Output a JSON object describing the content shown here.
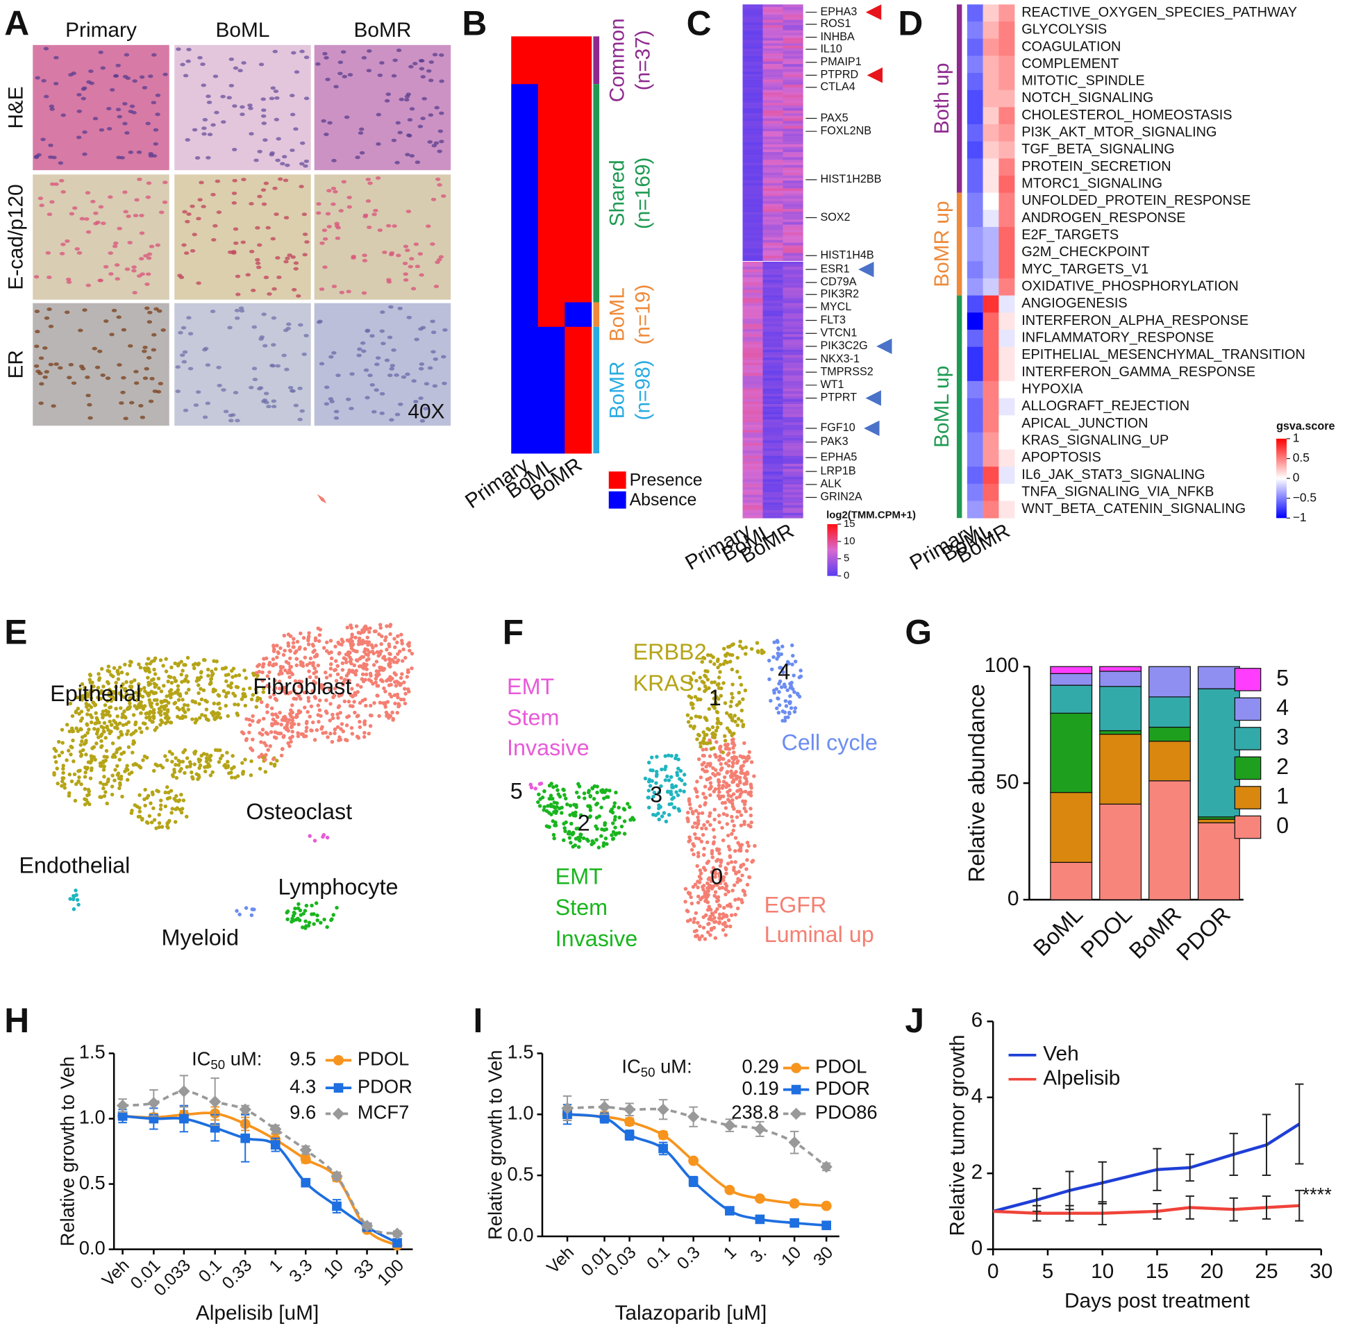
{
  "panel_labels": [
    "A",
    "B",
    "C",
    "D",
    "E",
    "F",
    "G",
    "H",
    "I",
    "J"
  ],
  "panel_a": {
    "columns": [
      "Primary",
      "BoML",
      "BoMR"
    ],
    "rows": [
      "H&E",
      "E-cad/p120",
      "ER"
    ],
    "magnification": "40X"
  },
  "panel_b": {
    "columns": [
      "Primary",
      "BoML",
      "BoMR"
    ],
    "groups": [
      {
        "name": "Common",
        "n": 37,
        "n_label": "(n=37)",
        "color": "#8e2a8e",
        "presence": [
          true,
          true,
          true
        ]
      },
      {
        "name": "Shared",
        "n": 169,
        "n_label": "(n=169)",
        "color": "#1e9a52",
        "presence": [
          false,
          true,
          true
        ]
      },
      {
        "name": "BoML",
        "n": 19,
        "n_label": "(n=19)",
        "color": "#ee8a3a",
        "presence": [
          false,
          true,
          false
        ]
      },
      {
        "name": "BoMR",
        "n": 98,
        "n_label": "(n=98)",
        "color": "#29abe2",
        "presence": [
          false,
          false,
          true
        ]
      }
    ],
    "legend": [
      {
        "label": "Presence",
        "color": "#ff0000"
      },
      {
        "label": "Absence",
        "color": "#0000ff"
      }
    ]
  },
  "panel_c": {
    "columns": [
      "Primary",
      "BoML",
      "BoMR"
    ],
    "genes": [
      {
        "name": "EPHA3",
        "arrow": "#e8141b"
      },
      {
        "name": "ROS1"
      },
      {
        "name": "INHBA"
      },
      {
        "name": "IL10"
      },
      {
        "name": "PMAIP1"
      },
      {
        "name": "PTPRD",
        "arrow": "#e8141b"
      },
      {
        "name": "CTLA4"
      },
      {
        "name": "PAX5"
      },
      {
        "name": "FOXL2NB"
      },
      {
        "name": "HIST1H2BB"
      },
      {
        "name": "SOX2"
      },
      {
        "name": "HIST1H4B"
      },
      {
        "name": "ESR1",
        "arrow": "#4a72c8"
      },
      {
        "name": "CD79A"
      },
      {
        "name": "PIK3R2"
      },
      {
        "name": "MYCL"
      },
      {
        "name": "FLT3"
      },
      {
        "name": "VTCN1"
      },
      {
        "name": "PIK3C2G",
        "arrow": "#4a72c8"
      },
      {
        "name": "NKX3-1"
      },
      {
        "name": "TMPRSS2"
      },
      {
        "name": "WT1"
      },
      {
        "name": "PTPRT",
        "arrow": "#4a72c8"
      },
      {
        "name": "FGF10",
        "arrow": "#4a72c8"
      },
      {
        "name": "PAK3"
      },
      {
        "name": "EPHA5"
      },
      {
        "name": "LRP1B"
      },
      {
        "name": "ALK"
      },
      {
        "name": "GRIN2A"
      }
    ],
    "colorbar": {
      "title": "log2(TMM.CPM+1)",
      "lim": [
        0,
        15
      ],
      "ticks": [
        15,
        10,
        5,
        0
      ]
    }
  },
  "panel_e": {
    "clusters": [
      {
        "name": "Epithelial",
        "color": "#b5a416"
      },
      {
        "name": "Fibroblast",
        "color": "#f47f72"
      },
      {
        "name": "Osteoclast",
        "color": "#e85ad8"
      },
      {
        "name": "Endothelial",
        "color": "#1fb5c0"
      },
      {
        "name": "Lymphocyte",
        "color": "#19b51e"
      },
      {
        "name": "Myeloid",
        "color": "#6b8cf0"
      }
    ]
  },
  "panel_f": {
    "clusters": [
      {
        "id": 0,
        "color": "#f47f72",
        "label": [
          "EGFR",
          "Luminal up"
        ]
      },
      {
        "id": 1,
        "color": "#b5a416",
        "label": [
          "ERBB2",
          "KRAS"
        ]
      },
      {
        "id": 2,
        "color": "#19b51e",
        "label": [
          "EMT",
          "Stem",
          "Invasive"
        ]
      },
      {
        "id": 3,
        "color": "#1fb5c0",
        "label": []
      },
      {
        "id": 4,
        "color": "#6b8cf0",
        "label": [
          "Cell cycle"
        ]
      },
      {
        "id": 5,
        "color": "#e85ad8",
        "label": [
          "EMT",
          "Stem",
          "Invasive"
        ]
      }
    ]
  },
  "chart_data": [
    {
      "type": "heatmap",
      "columns": [
        "Primary",
        "BoML",
        "BoMR"
      ],
      "groups": [
        {
          "name": "Both up",
          "color": "#8e2a8e",
          "rows": [
            "REACTIVE_OXYGEN_SPECIES_PATHWAY",
            "GLYCOLYSIS",
            "COAGULATION",
            "COMPLEMENT",
            "MITOTIC_SPINDLE",
            "NOTCH_SIGNALING",
            "CHOLESTEROL_HOMEOSTASIS",
            "PI3K_AKT_MTOR_SIGNALING",
            "TGF_BETA_SIGNALING",
            "PROTEIN_SECRETION",
            "MTORC1_SIGNALING"
          ],
          "values": [
            [
              -0.6,
              0.2,
              0.4
            ],
            [
              -0.5,
              0.3,
              0.5
            ],
            [
              -0.6,
              0.4,
              0.5
            ],
            [
              -0.5,
              0.3,
              0.4
            ],
            [
              -0.6,
              0.3,
              0.4
            ],
            [
              -0.7,
              0.3,
              0.3
            ],
            [
              -0.7,
              0.2,
              0.5
            ],
            [
              -0.6,
              0.3,
              0.4
            ],
            [
              -0.7,
              0.2,
              0.3
            ],
            [
              -0.6,
              0.1,
              0.5
            ],
            [
              -0.6,
              0.1,
              0.6
            ]
          ]
        },
        {
          "name": "BoMR up",
          "color": "#ee8a3a",
          "rows": [
            "UNFOLDED_PROTEIN_RESPONSE",
            "ANDROGEN_RESPONSE",
            "E2F_TARGETS",
            "G2M_CHECKPOINT",
            "MYC_TARGETS_V1",
            "OXIDATIVE_PHOSPHORYLATION"
          ],
          "values": [
            [
              -0.5,
              0,
              0.5
            ],
            [
              -0.5,
              -0.1,
              0.5
            ],
            [
              -0.4,
              -0.3,
              0.6
            ],
            [
              -0.4,
              -0.3,
              0.6
            ],
            [
              -0.5,
              -0.3,
              0.6
            ],
            [
              -0.4,
              -0.2,
              0.5
            ]
          ]
        },
        {
          "name": "BoML up",
          "color": "#1e9a52",
          "rows": [
            "ANGIOGENESIS",
            "INTERFERON_ALPHA_RESPONSE",
            "INFLAMMATORY_RESPONSE",
            "EPITHELIAL_MESENCHYMAL_TRANSITION",
            "INTERFERON_GAMMA_RESPONSE",
            "HYPOXIA",
            "ALLOGRAFT_REJECTION",
            "APICAL_JUNCTION",
            "KRAS_SIGNALING_UP",
            "APOPTOSIS",
            "IL6_JAK_STAT3_SIGNALING",
            "TNFA_SIGNALING_VIA_NFKB",
            "WNT_BETA_CATENIN_SIGNALING"
          ],
          "values": [
            [
              -0.7,
              0.8,
              -0.1
            ],
            [
              -1,
              0.6,
              0.1
            ],
            [
              -0.6,
              0.6,
              -0.1
            ],
            [
              -0.8,
              0.6,
              0.1
            ],
            [
              -0.8,
              0.6,
              0.1
            ],
            [
              -0.5,
              0.5,
              0
            ],
            [
              -0.6,
              0.5,
              -0.1
            ],
            [
              -0.6,
              0.5,
              0
            ],
            [
              -0.5,
              0.4,
              0
            ],
            [
              -0.5,
              0.4,
              0.1
            ],
            [
              -0.6,
              0.7,
              -0.1
            ],
            [
              -0.5,
              0.6,
              0
            ],
            [
              -0.4,
              0.5,
              0.1
            ]
          ]
        }
      ],
      "colorbar": {
        "title": "gsva.score",
        "lim": [
          -1,
          1
        ],
        "ticks": [
          1,
          0.5,
          0,
          {
            "value": -0.5,
            "label": "−0.5"
          },
          {
            "value": -1,
            "label": "−1"
          }
        ]
      }
    },
    {
      "type": "stacked_bar",
      "categories": [
        "BoML",
        "PDOL",
        "BoMR",
        "PDOR"
      ],
      "y_label": "Relative abundance",
      "series": [
        {
          "name": "0",
          "color": "#f8857c",
          "values": [
            16,
            41,
            51,
            33
          ]
        },
        {
          "name": "1",
          "color": "#d9870f",
          "values": [
            30,
            30,
            17,
            1.5
          ]
        },
        {
          "name": "2",
          "color": "#1ea01e",
          "values": [
            34,
            1.5,
            6,
            1
          ]
        },
        {
          "name": "3",
          "color": "#33aaaa",
          "values": [
            12,
            19,
            13,
            55
          ]
        },
        {
          "name": "4",
          "color": "#8f8ff2",
          "values": [
            5,
            6.5,
            13,
            9.5
          ]
        },
        {
          "name": "5",
          "color": "#ff3dff",
          "values": [
            3,
            2,
            0,
            0
          ]
        }
      ],
      "ylim": [
        0,
        100
      ],
      "yticks": [
        0,
        50,
        100
      ]
    },
    {
      "type": "line",
      "x_label": "Alpelisib [uM]",
      "y_label": "Relative growth to Veh",
      "categories": [
        "Veh",
        "0.01",
        "0.033",
        "0.1",
        "0.33",
        "1",
        "3.3",
        "10",
        "33",
        "100"
      ],
      "annotation": {
        "text": "IC",
        "subscript": "50",
        "suffix": " uM:"
      },
      "series": [
        {
          "name": "PDOL",
          "color": "#f7941d",
          "marker": "circle",
          "ic50": 9.5,
          "values": [
            1.02,
            1.01,
            1.03,
            1.04,
            0.96,
            0.84,
            0.69,
            0.55,
            0.15,
            0.03
          ],
          "errors": [
            0.02,
            0.03,
            0.03,
            0.05,
            0.05,
            0.04,
            0.03,
            0.03,
            0.02,
            0.02
          ]
        },
        {
          "name": "PDOR",
          "color": "#1e6fe0",
          "marker": "square",
          "ic50": 4.3,
          "values": [
            1.02,
            1.0,
            1.0,
            0.93,
            0.85,
            0.8,
            0.51,
            0.33,
            0.17,
            0.05
          ],
          "errors": [
            0.05,
            0.08,
            0.1,
            0.1,
            0.18,
            0.05,
            0.02,
            0.05,
            0.02,
            0.02
          ]
        },
        {
          "name": "MCF7",
          "color": "#999999",
          "marker": "diamond",
          "dashed": true,
          "ic50": 9.6,
          "values": [
            1.1,
            1.12,
            1.21,
            1.13,
            1.07,
            0.92,
            0.76,
            0.56,
            0.18,
            0.12
          ],
          "errors": [
            0.05,
            0.1,
            0.12,
            0.18,
            0.03,
            0.03,
            0.03,
            0.03,
            0.02,
            0.02
          ]
        }
      ],
      "ylim": [
        0,
        1.5
      ],
      "yticks": [
        {
          "value": 0,
          "label": "0.0"
        },
        0.5,
        {
          "value": 1,
          "label": "1.0"
        },
        1.5
      ]
    },
    {
      "type": "line",
      "x_label": "Talazoparib [uM]",
      "y_label": "Relative growth to Veh",
      "categories": [
        "Veh",
        "0.01",
        "0.03",
        "0.1",
        "0.3",
        "1",
        "3.",
        "10",
        "30"
      ],
      "annotation": {
        "text": "IC",
        "subscript": "50",
        "suffix": " uM:"
      },
      "series": [
        {
          "name": "PDOL",
          "color": "#f7941d",
          "marker": "circle",
          "ic50": 0.29,
          "values": [
            1.0,
            0.98,
            0.94,
            0.83,
            0.62,
            0.38,
            0.31,
            0.27,
            0.25
          ],
          "errors": [
            0.05,
            0.04,
            0.03,
            0.03,
            0.02,
            0.02,
            0.01,
            0.01,
            0.01
          ]
        },
        {
          "name": "PDOR",
          "color": "#1e6fe0",
          "marker": "square",
          "ic50": 0.19,
          "values": [
            1.0,
            0.97,
            0.83,
            0.72,
            0.45,
            0.21,
            0.14,
            0.11,
            0.09
          ],
          "errors": [
            0.08,
            0.04,
            0.04,
            0.05,
            0.04,
            0.02,
            0.01,
            0.01,
            0.01
          ]
        },
        {
          "name": "PDO86",
          "color": "#999999",
          "marker": "diamond",
          "dashed": true,
          "ic50": 238.8,
          "values": [
            1.05,
            1.06,
            1.04,
            1.04,
            0.98,
            0.91,
            0.88,
            0.77,
            0.57
          ],
          "errors": [
            0.1,
            0.06,
            0.05,
            0.08,
            0.08,
            0.05,
            0.06,
            0.09,
            0.03
          ]
        }
      ],
      "ylim": [
        0,
        1.5
      ],
      "yticks": [
        {
          "value": 0,
          "label": "0.0"
        },
        0.5,
        {
          "value": 1,
          "label": "1.0"
        },
        1.5
      ]
    },
    {
      "type": "line",
      "x_label": "Days post treatment",
      "y_label": "Relative tumor growth",
      "annotation": "****",
      "x": [
        0,
        4,
        7,
        10,
        15,
        18,
        22,
        25,
        28
      ],
      "series": [
        {
          "name": "Veh",
          "color": "#1f3fd6",
          "values": [
            1,
            1.3,
            1.55,
            1.75,
            2.1,
            2.15,
            2.5,
            2.75,
            3.3
          ],
          "errors": [
            0,
            0.3,
            0.5,
            0.55,
            0.55,
            0.35,
            0.55,
            0.8,
            1.05
          ]
        },
        {
          "name": "Alpelisib",
          "color": "#f0433a",
          "values": [
            1,
            0.95,
            0.95,
            0.95,
            1.0,
            1.1,
            1.05,
            1.1,
            1.15
          ],
          "errors": [
            0,
            0.2,
            0.2,
            0.3,
            0.2,
            0.3,
            0.3,
            0.3,
            0.4
          ]
        }
      ],
      "xlim": [
        0,
        30
      ],
      "xticks": [
        0,
        5,
        10,
        15,
        20,
        25,
        30
      ],
      "ylim": [
        0,
        6
      ],
      "yticks": [
        0,
        2,
        4,
        6
      ]
    }
  ]
}
